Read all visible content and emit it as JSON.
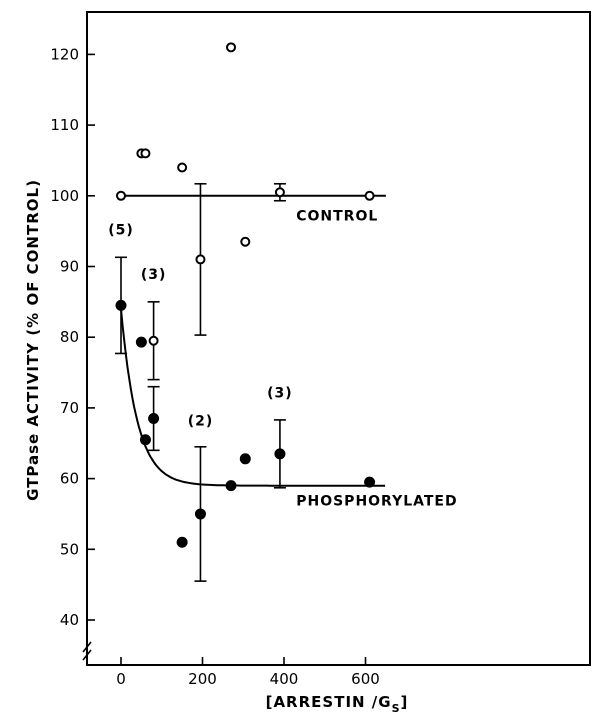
{
  "chart_data": {
    "type": "scatter",
    "title": "",
    "xlabel": "[ARRESTIN /G",
    "xlabel_sub": "S",
    "xlabel_close": "]",
    "ylabel": "GTPase ACTIVITY  (% OF CONTROL)",
    "xlim": [
      -40,
      650
    ],
    "ylim": [
      37,
      126
    ],
    "x_ticks": [
      0,
      200,
      400,
      600
    ],
    "x_tick_labels": [
      "0",
      "200",
      "400",
      "600"
    ],
    "y_ticks": [
      40,
      50,
      60,
      70,
      80,
      90,
      100,
      110,
      120
    ],
    "y_tick_labels": [
      "40",
      "50",
      "60",
      "70",
      "80",
      "90",
      "100",
      "110",
      "120"
    ],
    "grid": false,
    "series": [
      {
        "name": "CONTROL",
        "marker": "open-circle",
        "points": [
          {
            "x": 0,
            "y": 100
          },
          {
            "x": 50,
            "y": 106
          },
          {
            "x": 60,
            "y": 106
          },
          {
            "x": 150,
            "y": 104
          },
          {
            "x": 195,
            "y": 91,
            "err": 10.7
          },
          {
            "x": 270,
            "y": 121
          },
          {
            "x": 305,
            "y": 93.5
          },
          {
            "x": 390,
            "y": 100.5,
            "err": 1.2
          },
          {
            "x": 610,
            "y": 100
          }
        ],
        "fit_line": {
          "type": "flat",
          "y": 100,
          "x_range": [
            0,
            650
          ]
        }
      },
      {
        "name": "PHOSPHORYLATED",
        "marker": "filled-circle",
        "points": [
          {
            "x": 0,
            "y": 84.5,
            "err": 6.8
          },
          {
            "x": 50,
            "y": 79.3
          },
          {
            "x": 60,
            "y": 65.5
          },
          {
            "x": 80,
            "y": 68.5,
            "err": 4.5
          },
          {
            "x": 150,
            "y": 51
          },
          {
            "x": 195,
            "y": 55,
            "err": 9.5
          },
          {
            "x": 270,
            "y": 59
          },
          {
            "x": 305,
            "y": 62.8
          },
          {
            "x": 390,
            "y": 63.5,
            "err": 4.8
          },
          {
            "x": 610,
            "y": 59.5
          }
        ],
        "fit_curve": {
          "type": "exponential-decay",
          "y0": 84,
          "plateau": 59,
          "decay_constant": 40,
          "x_range": [
            0,
            650
          ]
        }
      }
    ],
    "extra_points": [
      {
        "x": 80,
        "y": 79.5,
        "err": 5.5,
        "marker": "open-circle"
      }
    ],
    "annotations": [
      {
        "text": "(5)",
        "x": 0,
        "y": 94.5
      },
      {
        "text": "(3)",
        "x": 80,
        "y": 88.2
      },
      {
        "text": "(2)",
        "x": 195,
        "y": 67.5
      },
      {
        "text": "(3)",
        "x": 390,
        "y": 71.5
      },
      {
        "text": "CONTROL",
        "x": 430,
        "y": 96.5
      },
      {
        "text": "PHOSPHORYLATED",
        "x": 430,
        "y": 56.2
      }
    ]
  }
}
